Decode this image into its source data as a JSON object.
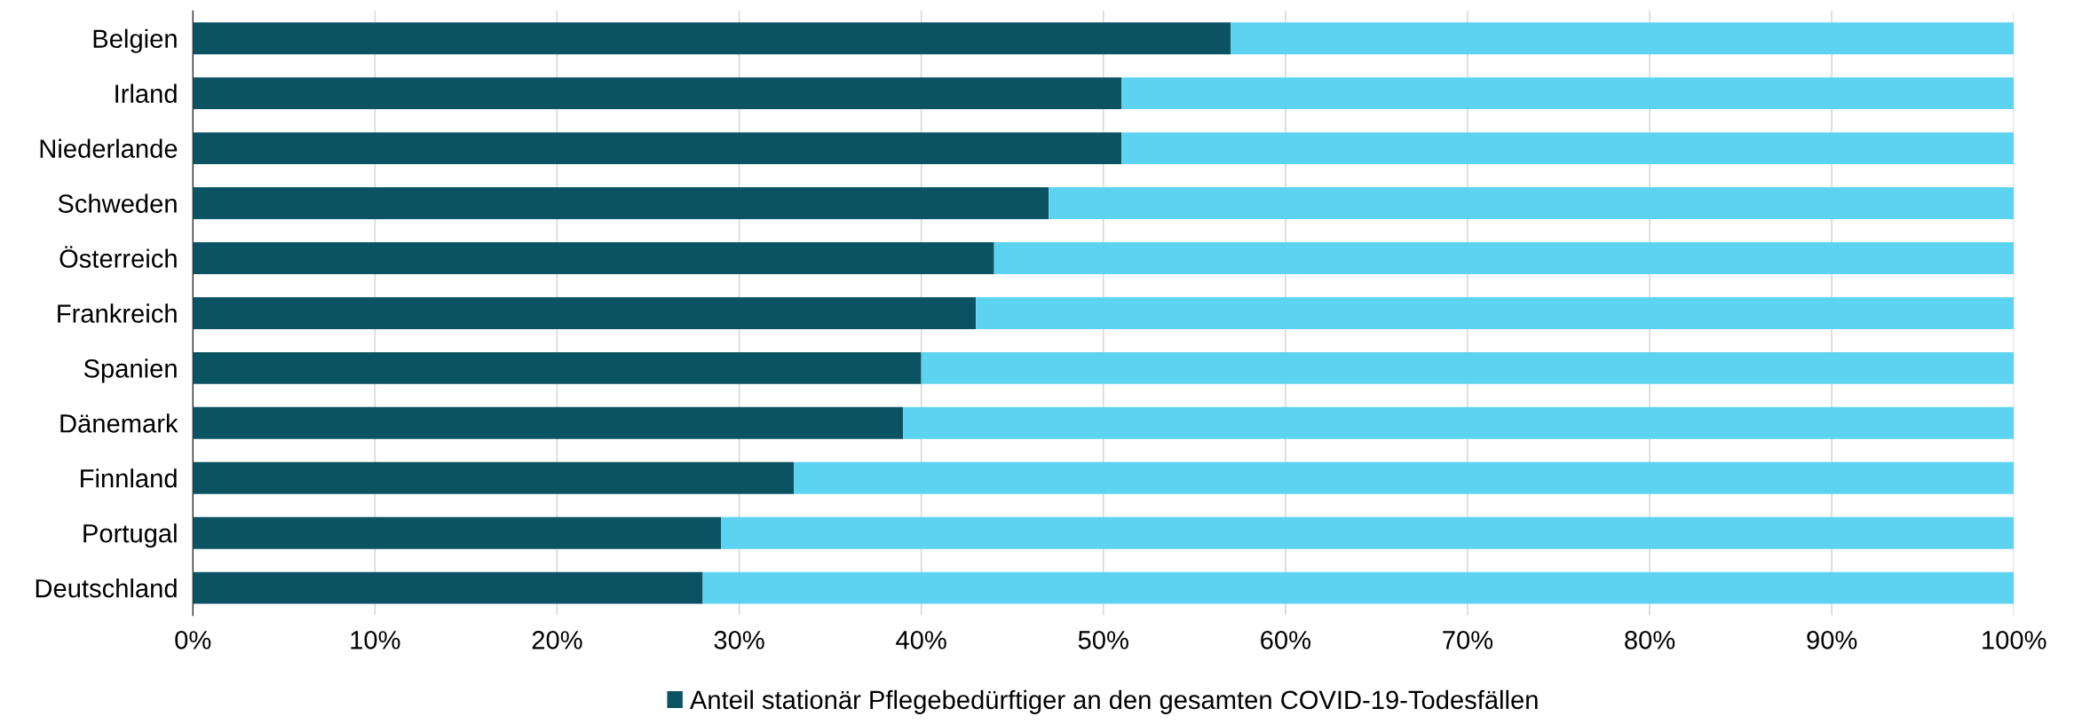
{
  "chart_data": {
    "type": "bar",
    "orientation": "horizontal",
    "stacked": true,
    "categories": [
      "Belgien",
      "Irland",
      "Niederlande",
      "Schweden",
      "Österreich",
      "Frankreich",
      "Spanien",
      "Dänemark",
      "Finnland",
      "Portugal",
      "Deutschland"
    ],
    "series": [
      {
        "name": "Anteil stationär Pflegebedürftiger an den gesamten COVID-19-Todesfällen",
        "color": "#0b5263",
        "values": [
          57,
          51,
          51,
          47,
          44,
          43,
          40,
          39,
          33,
          29,
          28
        ]
      },
      {
        "color": "#5dd3f2",
        "values": [
          43,
          49,
          49,
          53,
          56,
          57,
          60,
          61,
          67,
          71,
          72
        ]
      }
    ],
    "xlim": [
      0,
      100
    ],
    "xticks": [
      {
        "value": 0,
        "label": "0%"
      },
      {
        "value": 10,
        "label": "10%"
      },
      {
        "value": 20,
        "label": "20%"
      },
      {
        "value": 30,
        "label": "30%"
      },
      {
        "value": 40,
        "label": "40%"
      },
      {
        "value": 50,
        "label": "50%"
      },
      {
        "value": 60,
        "label": "60%"
      },
      {
        "value": 70,
        "label": "70%"
      },
      {
        "value": 80,
        "label": "80%"
      },
      {
        "value": 90,
        "label": "90%"
      },
      {
        "value": 100,
        "label": "100%"
      }
    ],
    "grid": "x",
    "legend": "bottom"
  }
}
